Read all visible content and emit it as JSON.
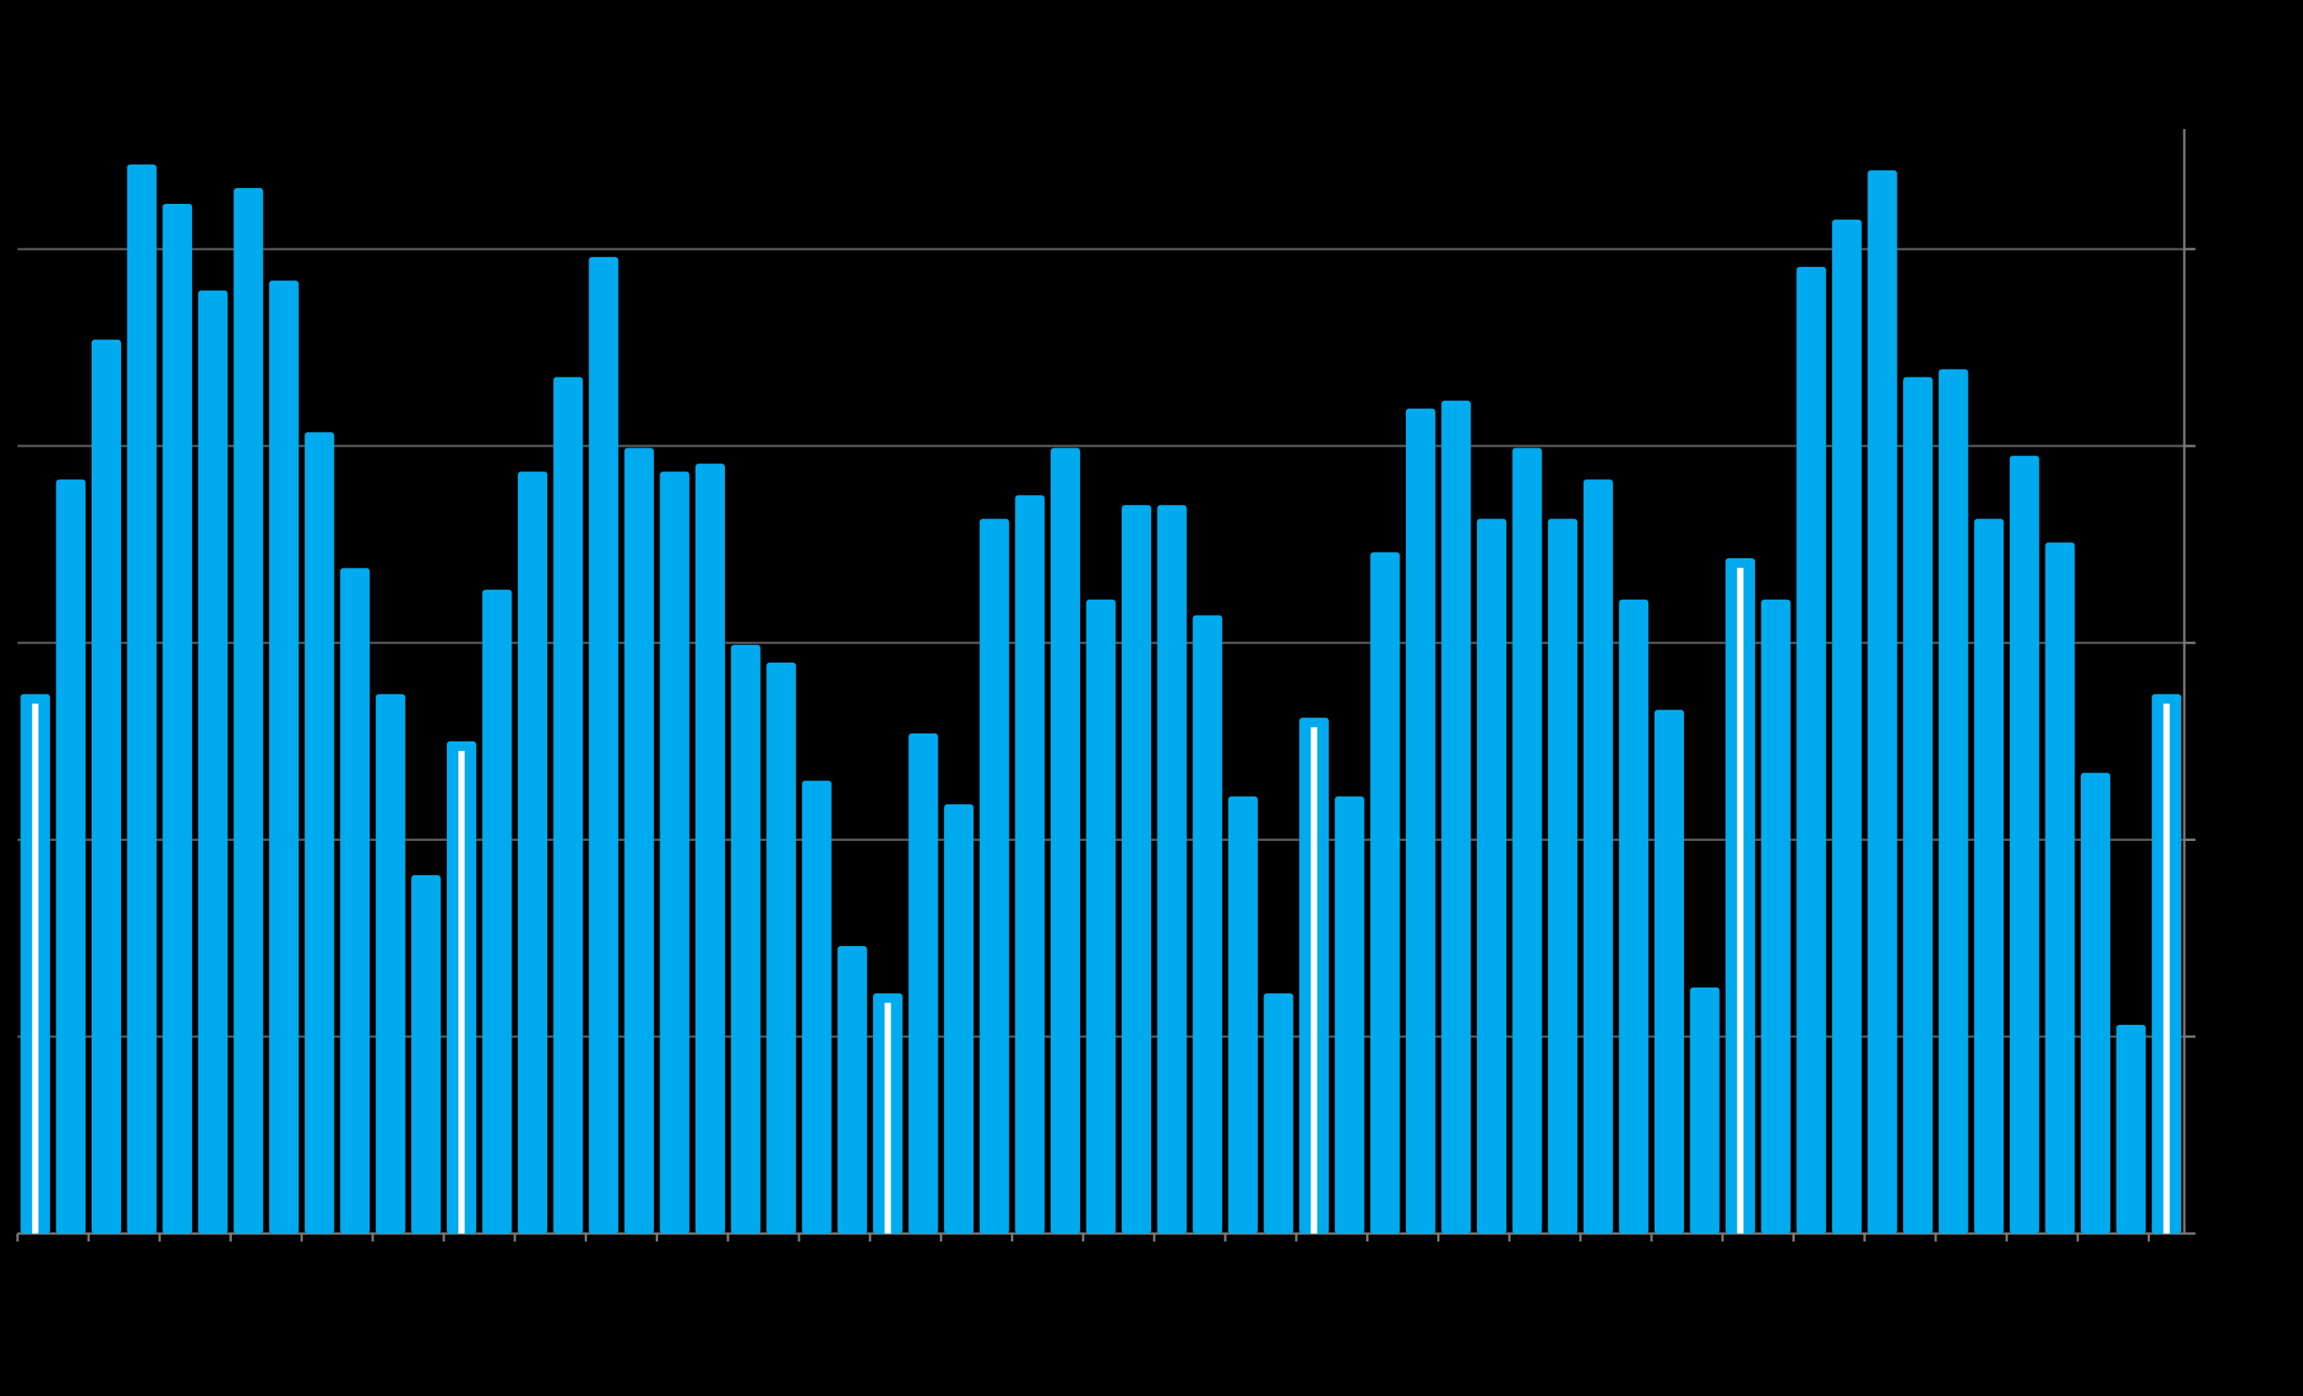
{
  "chart_data": {
    "type": "bar",
    "categories": [
      null,
      null,
      null,
      null,
      null,
      null,
      null,
      null,
      null,
      null,
      null,
      null,
      null,
      null,
      null,
      null,
      null,
      null,
      null,
      null,
      null,
      null,
      null,
      null,
      null,
      null,
      null,
      null,
      null,
      null,
      null,
      null,
      null,
      null,
      null,
      null,
      null,
      null,
      null,
      null,
      null,
      null,
      null,
      null,
      null,
      null,
      null,
      null,
      null,
      null,
      null,
      null,
      null,
      null,
      null,
      null,
      null,
      null,
      null,
      null,
      null
    ],
    "values": [
      2.74,
      3.83,
      4.54,
      5.43,
      5.23,
      4.79,
      5.31,
      4.84,
      4.07,
      3.38,
      2.74,
      1.82,
      2.5,
      3.27,
      3.87,
      4.35,
      4.96,
      3.99,
      3.87,
      3.91,
      2.99,
      2.9,
      2.3,
      1.46,
      1.22,
      2.54,
      2.18,
      3.63,
      3.75,
      3.99,
      3.22,
      3.7,
      3.7,
      3.14,
      2.22,
      1.22,
      2.62,
      2.22,
      3.46,
      4.19,
      4.23,
      3.63,
      3.99,
      3.63,
      3.83,
      3.22,
      2.66,
      1.25,
      3.43,
      3.22,
      4.91,
      5.15,
      5.4,
      4.35,
      4.39,
      3.63,
      3.95,
      3.51,
      2.34,
      1.06,
      2.74
    ],
    "color": "#00aaee",
    "highlighted": [
      0,
      12,
      24,
      36,
      48,
      60
    ],
    "highlight_color": "#ffffff",
    "ylim": [
      0,
      5.61
    ],
    "yticks": [
      0,
      1,
      2,
      3,
      4,
      5
    ],
    "grid": true,
    "y_axis_side": "right"
  }
}
